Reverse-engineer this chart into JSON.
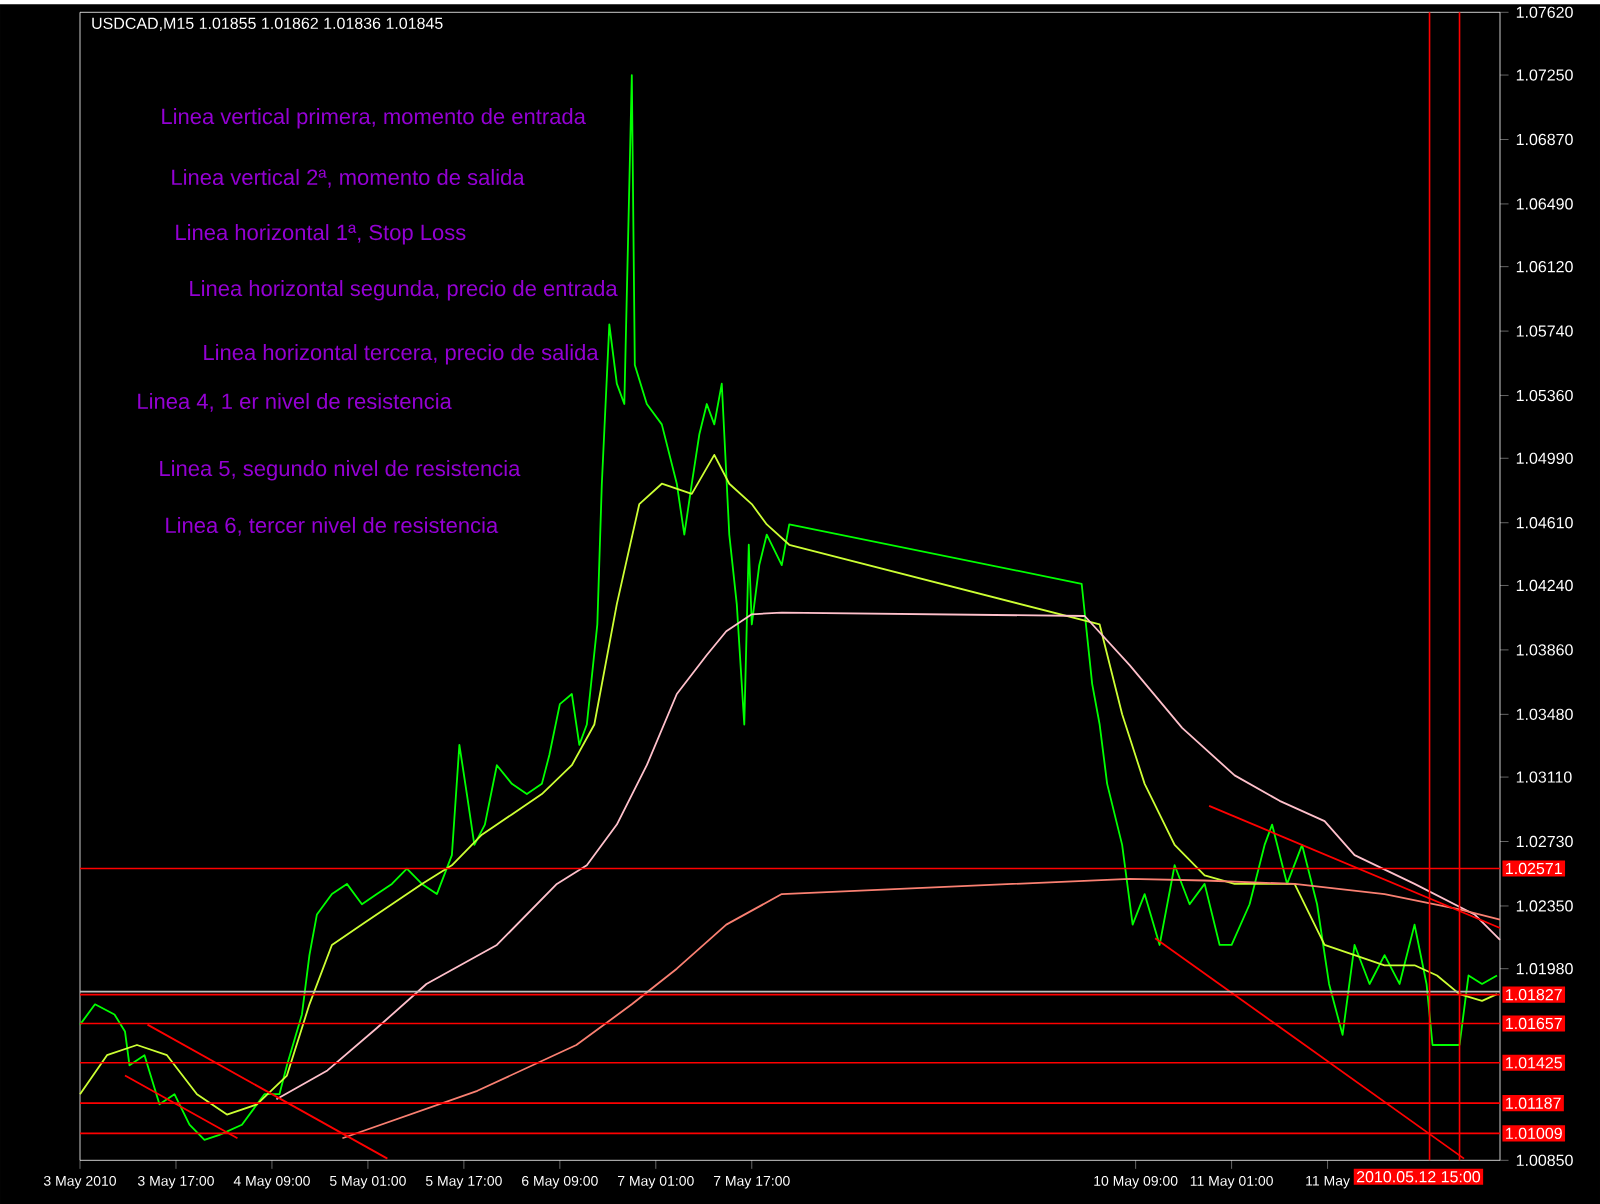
{
  "chart_data": {
    "type": "line",
    "title": "USDCAD,M15  1.01855 1.01862 1.01836 1.01845",
    "annotations": [
      "Linea vertical primera, momento de entrada",
      "Linea vertical 2ª, momento de salida",
      "Linea horizontal 1ª, Stop Loss",
      "Linea horizontal segunda, precio de entrada",
      "Linea horizontal tercera, precio de salida",
      "Linea 4, 1 er nivel de resistencia",
      "Linea 5, segundo nivel de resistencia",
      "Linea 6, tercer nivel de resistencia"
    ],
    "xlim": [
      "2010-05-03T01:00",
      "2010-05-12T21:45"
    ],
    "xticks": [
      {
        "value": "2010-05-03T01:00",
        "label": "3 May 2010"
      },
      {
        "value": "2010-05-03T17:00",
        "label": "3 May 17:00"
      },
      {
        "value": "2010-05-04T09:00",
        "label": "4 May 09:00"
      },
      {
        "value": "2010-05-05T01:00",
        "label": "5 May 01:00"
      },
      {
        "value": "2010-05-05T17:00",
        "label": "5 May 17:00"
      },
      {
        "value": "2010-05-06T09:00",
        "label": "6 May 09:00"
      },
      {
        "value": "2010-05-07T01:00",
        "label": "7 May 01:00"
      },
      {
        "value": "2010-05-07T17:00",
        "label": "7 May 17:00"
      },
      {
        "value": "2010-05-10T09:00",
        "label": "10 May 09:00"
      },
      {
        "value": "2010-05-11T01:00",
        "label": "11 May 01:00"
      },
      {
        "value": "2010-05-11T17:00",
        "label": "11 May"
      }
    ],
    "ylim": [
      1.0085,
      1.0762
    ],
    "yticks": [
      {
        "value": 1.0762,
        "label": "1.07620"
      },
      {
        "value": 1.0725,
        "label": "1.07250"
      },
      {
        "value": 1.0687,
        "label": "1.06870"
      },
      {
        "value": 1.0649,
        "label": "1.06490"
      },
      {
        "value": 1.0612,
        "label": "1.06120"
      },
      {
        "value": 1.0574,
        "label": "1.05740"
      },
      {
        "value": 1.0536,
        "label": "1.05360"
      },
      {
        "value": 1.0499,
        "label": "1.04990"
      },
      {
        "value": 1.0461,
        "label": "1.04610"
      },
      {
        "value": 1.0424,
        "label": "1.04240"
      },
      {
        "value": 1.0386,
        "label": "1.03860"
      },
      {
        "value": 1.0348,
        "label": "1.03480"
      },
      {
        "value": 1.0311,
        "label": "1.03110"
      },
      {
        "value": 1.0273,
        "label": "1.02730"
      },
      {
        "value": 1.0235,
        "label": "1.02350"
      },
      {
        "value": 1.0198,
        "label": "1.01980"
      },
      {
        "value": 1.0085,
        "label": "1.00850"
      }
    ],
    "series": [
      {
        "color": "#00ff00",
        "x": [
          "2010-05-03T01:00",
          "2010-05-03T03:30",
          "2010-05-03T06:45",
          "2010-05-03T08:30",
          "2010-05-03T09:15",
          "2010-05-03T11:45",
          "2010-05-03T14:15",
          "2010-05-03T16:45",
          "2010-05-03T19:15",
          "2010-05-03T21:45",
          "2010-05-04T00:15",
          "2010-05-04T04:00",
          "2010-05-04T07:45",
          "2010-05-04T10:15",
          "2010-05-04T11:30",
          "2010-05-04T14:00",
          "2010-05-04T15:15",
          "2010-05-04T16:30",
          "2010-05-04T19:00",
          "2010-05-04T21:30",
          "2010-05-05T00:00",
          "2010-05-05T02:30",
          "2010-05-05T05:00",
          "2010-05-05T07:30",
          "2010-05-05T10:00",
          "2010-05-05T12:30",
          "2010-05-05T15:00",
          "2010-05-05T16:15",
          "2010-05-05T17:30",
          "2010-05-05T18:45",
          "2010-05-05T20:30",
          "2010-05-05T22:30",
          "2010-05-06T01:00",
          "2010-05-06T03:30",
          "2010-05-06T06:00",
          "2010-05-06T07:15",
          "2010-05-06T09:00",
          "2010-05-06T11:00",
          "2010-05-06T12:15",
          "2010-05-06T13:30",
          "2010-05-06T15:15",
          "2010-05-06T16:00",
          "2010-05-06T17:15",
          "2010-05-06T18:30",
          "2010-05-06T19:45",
          "2010-05-06T21:00",
          "2010-05-06T21:30",
          "2010-05-06T23:30",
          "2010-05-07T02:00",
          "2010-05-07T04:30",
          "2010-05-07T05:45",
          "2010-05-07T07:00",
          "2010-05-07T08:15",
          "2010-05-07T09:30",
          "2010-05-07T10:45",
          "2010-05-07T12:00",
          "2010-05-07T13:15",
          "2010-05-07T14:30",
          "2010-05-07T15:45",
          "2010-05-07T16:30",
          "2010-05-07T17:00",
          "2010-05-07T18:15",
          "2010-05-07T19:30",
          "2010-05-07T22:00",
          "2010-05-07T23:15",
          "2010-05-10T00:00",
          "2010-05-10T01:45",
          "2010-05-10T03:00",
          "2010-05-10T04:15",
          "2010-05-10T06:45",
          "2010-05-10T08:30",
          "2010-05-10T10:30",
          "2010-05-10T13:00",
          "2010-05-10T15:30",
          "2010-05-10T18:00",
          "2010-05-10T20:30",
          "2010-05-10T23:00",
          "2010-05-11T01:00",
          "2010-05-11T04:00",
          "2010-05-11T06:30",
          "2010-05-11T07:45",
          "2010-05-11T10:15",
          "2010-05-11T12:45",
          "2010-05-11T15:15",
          "2010-05-11T17:15",
          "2010-05-11T19:30",
          "2010-05-11T21:30",
          "2010-05-12T00:00",
          "2010-05-12T02:30",
          "2010-05-12T05:00",
          "2010-05-12T07:30",
          "2010-05-12T09:30",
          "2010-05-12T10:30",
          "2010-05-12T12:30",
          "2010-05-12T15:00",
          "2010-05-12T16:30",
          "2010-05-12T18:45",
          "2010-05-12T21:15"
        ],
        "values": [
          1.0165,
          1.0177,
          1.0171,
          1.0161,
          1.0141,
          1.0147,
          1.0118,
          1.0124,
          1.0106,
          1.0097,
          1.01,
          1.0106,
          1.0124,
          1.0124,
          1.0141,
          1.0171,
          1.0206,
          1.023,
          1.0242,
          1.0248,
          1.0236,
          1.0242,
          1.0248,
          1.0257,
          1.0248,
          1.0242,
          1.0265,
          1.033,
          1.0301,
          1.0271,
          1.0283,
          1.0318,
          1.0307,
          1.0301,
          1.0307,
          1.0324,
          1.0354,
          1.036,
          1.033,
          1.0342,
          1.0401,
          1.0484,
          1.0578,
          1.0543,
          1.0531,
          1.0725,
          1.0554,
          1.0531,
          1.0519,
          1.0484,
          1.0454,
          1.0484,
          1.0513,
          1.0531,
          1.0519,
          1.0543,
          1.0454,
          1.0413,
          1.0342,
          1.0448,
          1.0401,
          1.0436,
          1.0454,
          1.0436,
          1.046,
          1.0425,
          1.0366,
          1.0342,
          1.0307,
          1.0271,
          1.0224,
          1.0242,
          1.0212,
          1.0259,
          1.0236,
          1.0248,
          1.0212,
          1.0212,
          1.0236,
          1.0271,
          1.0283,
          1.0248,
          1.0271,
          1.0236,
          1.0189,
          1.0159,
          1.0212,
          1.0189,
          1.0206,
          1.0189,
          1.0224,
          1.0189,
          1.0153,
          1.0153,
          1.0153,
          1.0194,
          1.0189,
          1.0194
        ]
      },
      {
        "color": "#ccff33",
        "x": [
          "2010-05-03T01:00",
          "2010-05-03T05:30",
          "2010-05-03T10:30",
          "2010-05-03T15:30",
          "2010-05-03T20:30",
          "2010-05-04T01:30",
          "2010-05-04T06:30",
          "2010-05-04T11:30",
          "2010-05-04T15:15",
          "2010-05-04T19:00",
          "2010-05-05T00:00",
          "2010-05-05T05:00",
          "2010-05-05T10:00",
          "2010-05-05T15:00",
          "2010-05-05T20:00",
          "2010-05-06T01:00",
          "2010-05-06T06:00",
          "2010-05-06T11:00",
          "2010-05-06T14:45",
          "2010-05-06T18:30",
          "2010-05-06T22:15",
          "2010-05-07T02:00",
          "2010-05-07T07:00",
          "2010-05-07T10:45",
          "2010-05-07T13:15",
          "2010-05-07T17:00",
          "2010-05-07T19:30",
          "2010-05-07T23:15",
          "2010-05-10T03:00",
          "2010-05-10T06:45",
          "2010-05-10T10:30",
          "2010-05-10T15:30",
          "2010-05-10T20:30",
          "2010-05-11T01:30",
          "2010-05-11T06:30",
          "2010-05-11T11:30",
          "2010-05-11T16:30",
          "2010-05-11T21:30",
          "2010-05-12T02:30",
          "2010-05-12T07:30",
          "2010-05-12T11:15",
          "2010-05-12T15:00",
          "2010-05-12T18:45",
          "2010-05-12T21:15"
        ],
        "values": [
          1.0124,
          1.0147,
          1.0153,
          1.0147,
          1.0124,
          1.0112,
          1.0118,
          1.0135,
          1.0177,
          1.0212,
          1.0224,
          1.0236,
          1.0248,
          1.0259,
          1.0277,
          1.0289,
          1.0301,
          1.0318,
          1.0342,
          1.0413,
          1.0472,
          1.0484,
          1.0478,
          1.0501,
          1.0484,
          1.0472,
          1.046,
          1.0448,
          1.0401,
          1.0348,
          1.0307,
          1.0271,
          1.0253,
          1.0248,
          1.0248,
          1.0248,
          1.0212,
          1.0206,
          1.02,
          1.02,
          1.0194,
          1.0183,
          1.0179,
          1.0183
        ]
      },
      {
        "color": "#ffc0cb",
        "x": [
          "2010-05-04T09:45",
          "2010-05-04T18:15",
          "2010-05-05T02:30",
          "2010-05-05T10:45",
          "2010-05-05T22:30",
          "2010-05-06T08:30",
          "2010-05-06T13:30",
          "2010-05-06T18:30",
          "2010-05-06T23:30",
          "2010-05-07T04:30",
          "2010-05-07T09:30",
          "2010-05-07T12:45",
          "2010-05-07T17:00",
          "2010-05-07T22:00",
          "2010-05-10T00:30",
          "2010-05-10T08:00",
          "2010-05-10T16:45",
          "2010-05-11T01:30",
          "2010-05-11T09:00",
          "2010-05-11T16:30",
          "2010-05-11T21:30",
          "2010-05-12T07:30",
          "2010-05-12T17:30",
          "2010-05-12T21:45"
        ],
        "values": [
          1.0121,
          1.0138,
          1.0163,
          1.0189,
          1.0212,
          1.0248,
          1.0259,
          1.0283,
          1.0318,
          1.036,
          1.0383,
          1.0397,
          1.0407,
          1.0408,
          1.0406,
          1.0377,
          1.034,
          1.0312,
          1.0297,
          1.0285,
          1.0265,
          1.0248,
          1.023,
          1.0215
        ]
      },
      {
        "color": "#fa8072",
        "x": [
          "2010-05-04T20:45",
          "2010-05-05T19:15",
          "2010-05-06T11:45",
          "2010-05-06T21:00",
          "2010-05-07T04:30",
          "2010-05-07T12:45",
          "2010-05-07T22:00",
          "2010-05-10T08:00",
          "2010-05-10T20:30",
          "2010-05-11T11:30",
          "2010-05-12T02:30",
          "2010-05-12T15:00",
          "2010-05-12T21:45"
        ],
        "values": [
          1.0098,
          1.0126,
          1.0153,
          1.0177,
          1.0198,
          1.0224,
          1.0242,
          1.0251,
          1.025,
          1.0248,
          1.0242,
          1.0233,
          1.0227
        ]
      },
      {
        "color": "#ff0000",
        "x": [
          "2010-05-03T12:15",
          "2010-05-05T04:15"
        ],
        "values": [
          1.0165,
          1.0086
        ]
      },
      {
        "color": "#ff0000",
        "x": [
          "2010-05-03T08:30",
          "2010-05-04T03:15"
        ],
        "values": [
          1.0135,
          1.0098
        ]
      },
      {
        "color": "#ff0000",
        "x": [
          "2010-05-10T12:15",
          "2010-05-12T15:45"
        ],
        "values": [
          1.0216,
          1.0086
        ]
      },
      {
        "color": "#ff0000",
        "x": [
          "2010-05-10T21:15",
          "2010-05-12T21:45"
        ],
        "values": [
          1.0294,
          1.0222
        ]
      }
    ],
    "ref_lines": [
      {
        "axis": "y",
        "value": 1.02571,
        "label": "1.02571",
        "color": "#ff0000"
      },
      {
        "axis": "y",
        "value": 1.01827,
        "label": "1.01827",
        "color": "#ff0000"
      },
      {
        "axis": "y",
        "value": 1.01657,
        "label": "1.01657",
        "color": "#ff0000"
      },
      {
        "axis": "y",
        "value": 1.01425,
        "label": "1.01425",
        "color": "#ff0000"
      },
      {
        "axis": "y",
        "value": 1.01187,
        "label": "1.01187",
        "color": "#ff0000"
      },
      {
        "axis": "y",
        "value": 1.01009,
        "label": "1.01009",
        "color": "#ff0000"
      },
      {
        "axis": "y",
        "value": 1.01845,
        "color": "#c0c0c0"
      },
      {
        "axis": "x",
        "value": "2010-05-12T10:00",
        "color": "#ff0000"
      },
      {
        "axis": "x",
        "value": "2010-05-12T15:00",
        "label": "2010.05.12 15:00",
        "color": "#ff0000"
      }
    ]
  }
}
